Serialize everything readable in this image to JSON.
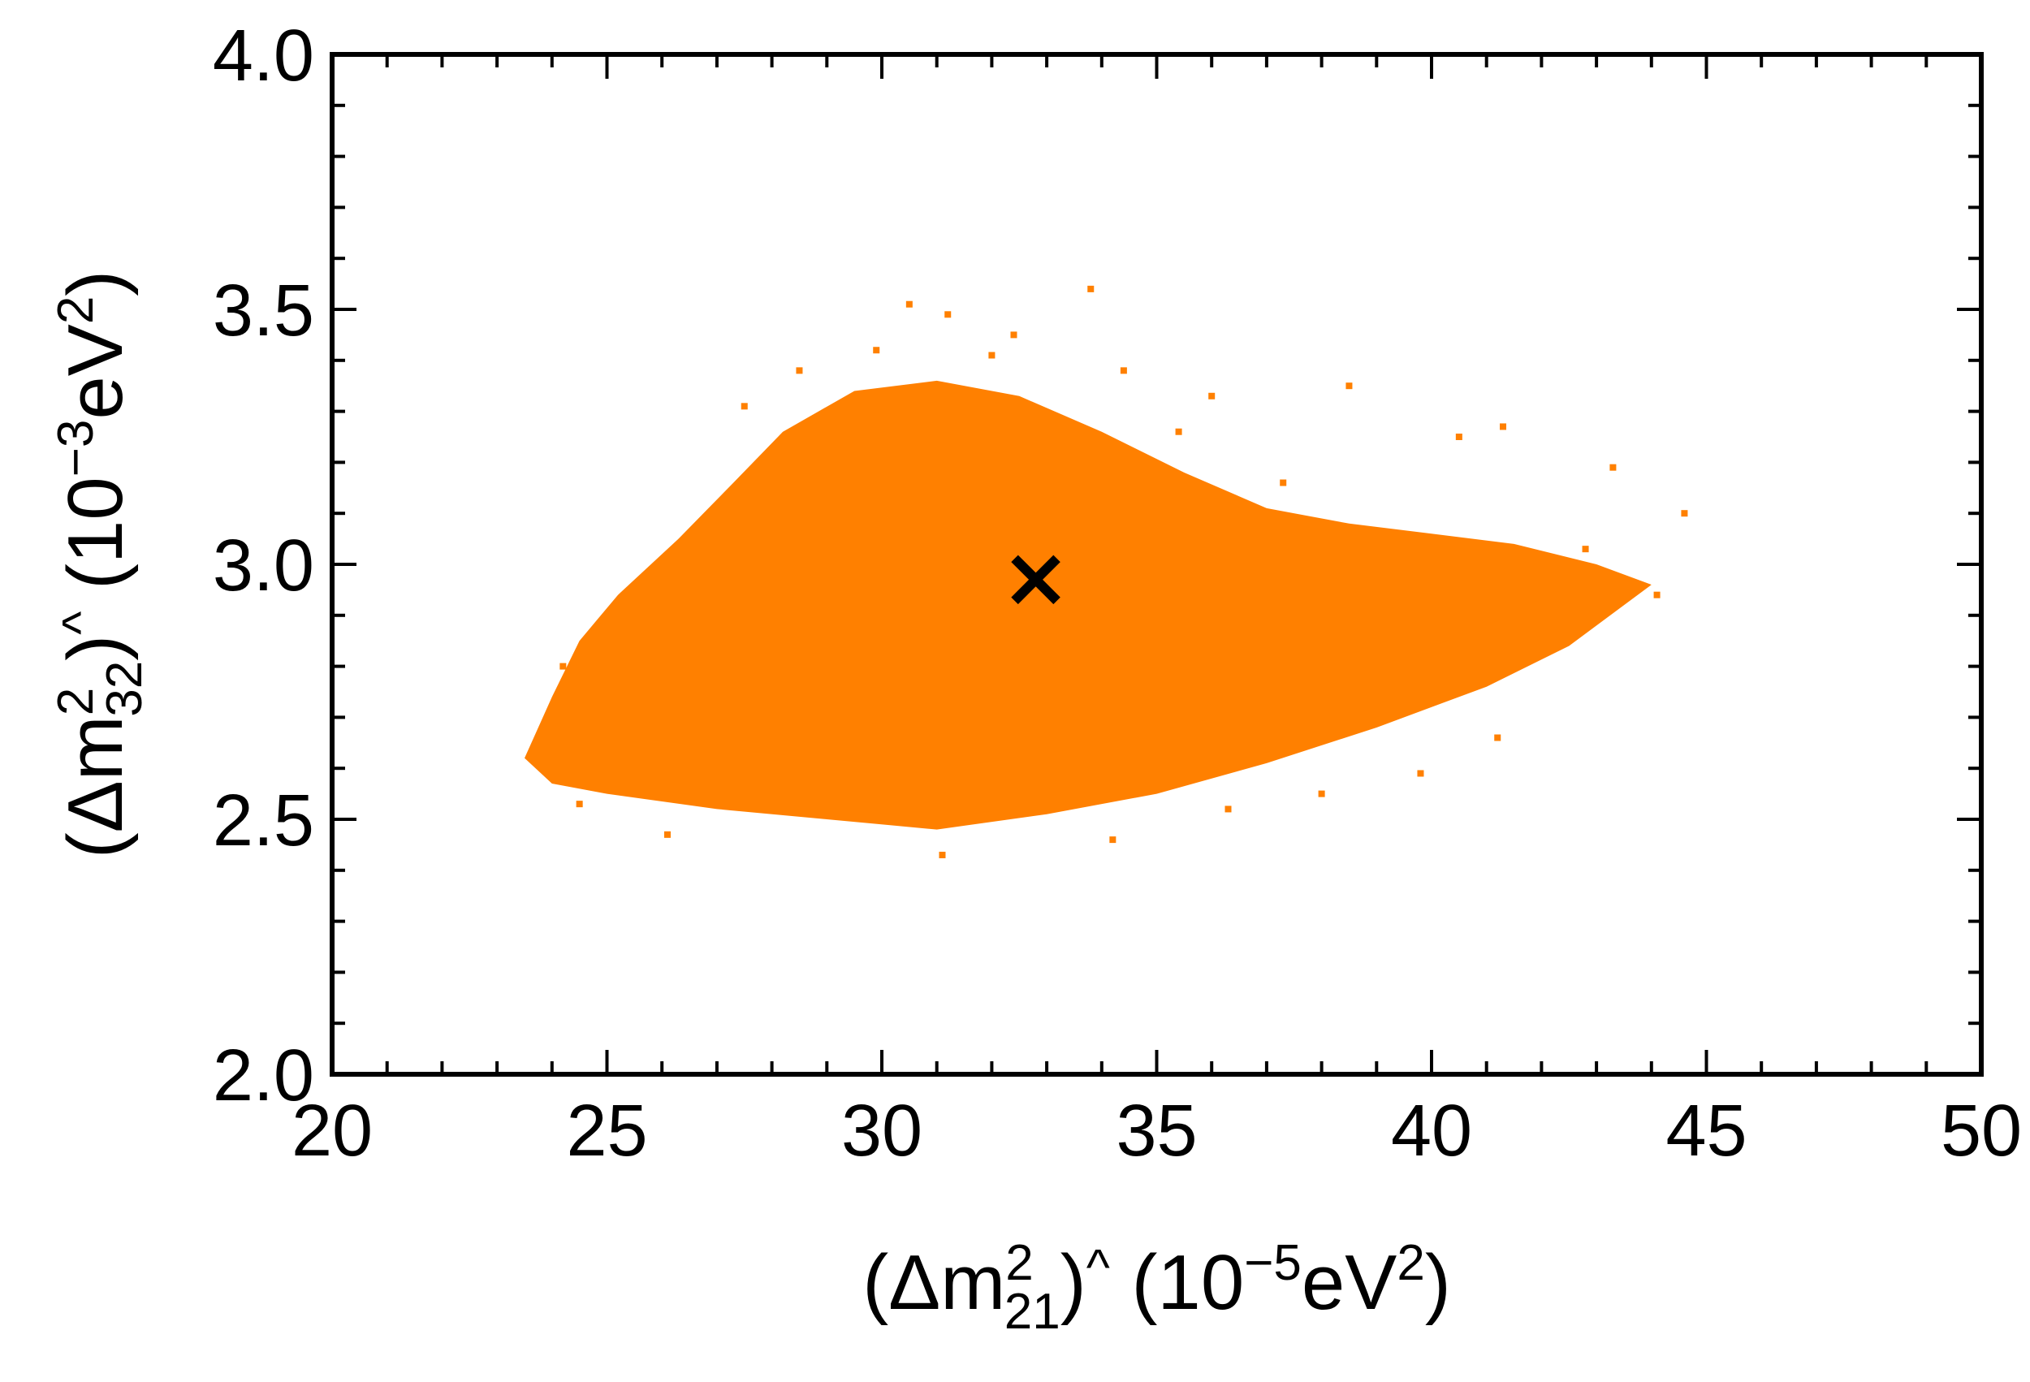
{
  "chart_data": {
    "type": "scatter",
    "title": "",
    "xlabel": {
      "prefix": "(Δm",
      "sup": "2",
      "sub": "21",
      "middle": ")",
      "sup2": "^",
      "suffix": " (10",
      "exp": "−5",
      "unit": "eV",
      "unit_sup": "2",
      "close": ")"
    },
    "ylabel": {
      "prefix": "(Δm",
      "sup": "2",
      "sub": "32",
      "middle": ")",
      "sup2": "^",
      "suffix": " (10",
      "exp": "−3",
      "unit": "eV",
      "unit_sup": "2",
      "close": ")"
    },
    "xlim": [
      20,
      50
    ],
    "ylim": [
      2.0,
      4.0
    ],
    "x_ticks": [
      "20",
      "25",
      "30",
      "35",
      "40",
      "45",
      "50"
    ],
    "y_ticks": [
      "2.0",
      "2.5",
      "3.0",
      "3.5",
      "4.0"
    ],
    "grid": false,
    "point_color": "#ff8000",
    "marker_color": "#000000",
    "best_fit": {
      "x": 32.8,
      "y": 2.97
    },
    "region_outline": [
      [
        23.5,
        2.62
      ],
      [
        24.0,
        2.74
      ],
      [
        24.5,
        2.85
      ],
      [
        25.2,
        2.94
      ],
      [
        26.3,
        3.05
      ],
      [
        27.3,
        3.16
      ],
      [
        28.2,
        3.26
      ],
      [
        29.5,
        3.34
      ],
      [
        31.0,
        3.36
      ],
      [
        32.5,
        3.33
      ],
      [
        34.0,
        3.26
      ],
      [
        35.5,
        3.18
      ],
      [
        37.0,
        3.11
      ],
      [
        38.5,
        3.08
      ],
      [
        40.0,
        3.06
      ],
      [
        41.5,
        3.04
      ],
      [
        43.0,
        3.0
      ],
      [
        44.0,
        2.96
      ],
      [
        42.5,
        2.84
      ],
      [
        41.0,
        2.76
      ],
      [
        39.0,
        2.68
      ],
      [
        37.0,
        2.61
      ],
      [
        35.0,
        2.55
      ],
      [
        33.0,
        2.51
      ],
      [
        31.0,
        2.48
      ],
      [
        29.0,
        2.5
      ],
      [
        27.0,
        2.52
      ],
      [
        25.0,
        2.55
      ],
      [
        24.0,
        2.57
      ]
    ],
    "scatter_outliers": [
      [
        30.5,
        3.51
      ],
      [
        31.2,
        3.49
      ],
      [
        32.4,
        3.45
      ],
      [
        33.8,
        3.54
      ],
      [
        34.4,
        3.38
      ],
      [
        36.0,
        3.33
      ],
      [
        38.5,
        3.35
      ],
      [
        40.5,
        3.25
      ],
      [
        41.3,
        3.27
      ],
      [
        43.3,
        3.19
      ],
      [
        44.6,
        3.1
      ],
      [
        44.1,
        2.94
      ],
      [
        42.8,
        3.03
      ],
      [
        27.5,
        3.31
      ],
      [
        28.5,
        3.38
      ],
      [
        23.7,
        2.63
      ],
      [
        24.5,
        2.53
      ],
      [
        26.1,
        2.47
      ],
      [
        31.1,
        2.43
      ],
      [
        34.2,
        2.46
      ],
      [
        36.3,
        2.52
      ],
      [
        38.0,
        2.55
      ],
      [
        39.8,
        2.59
      ],
      [
        41.2,
        2.66
      ],
      [
        35.4,
        3.26
      ],
      [
        37.3,
        3.16
      ],
      [
        29.9,
        3.42
      ],
      [
        32.0,
        3.41
      ],
      [
        25.4,
        2.92
      ],
      [
        24.2,
        2.8
      ]
    ]
  }
}
